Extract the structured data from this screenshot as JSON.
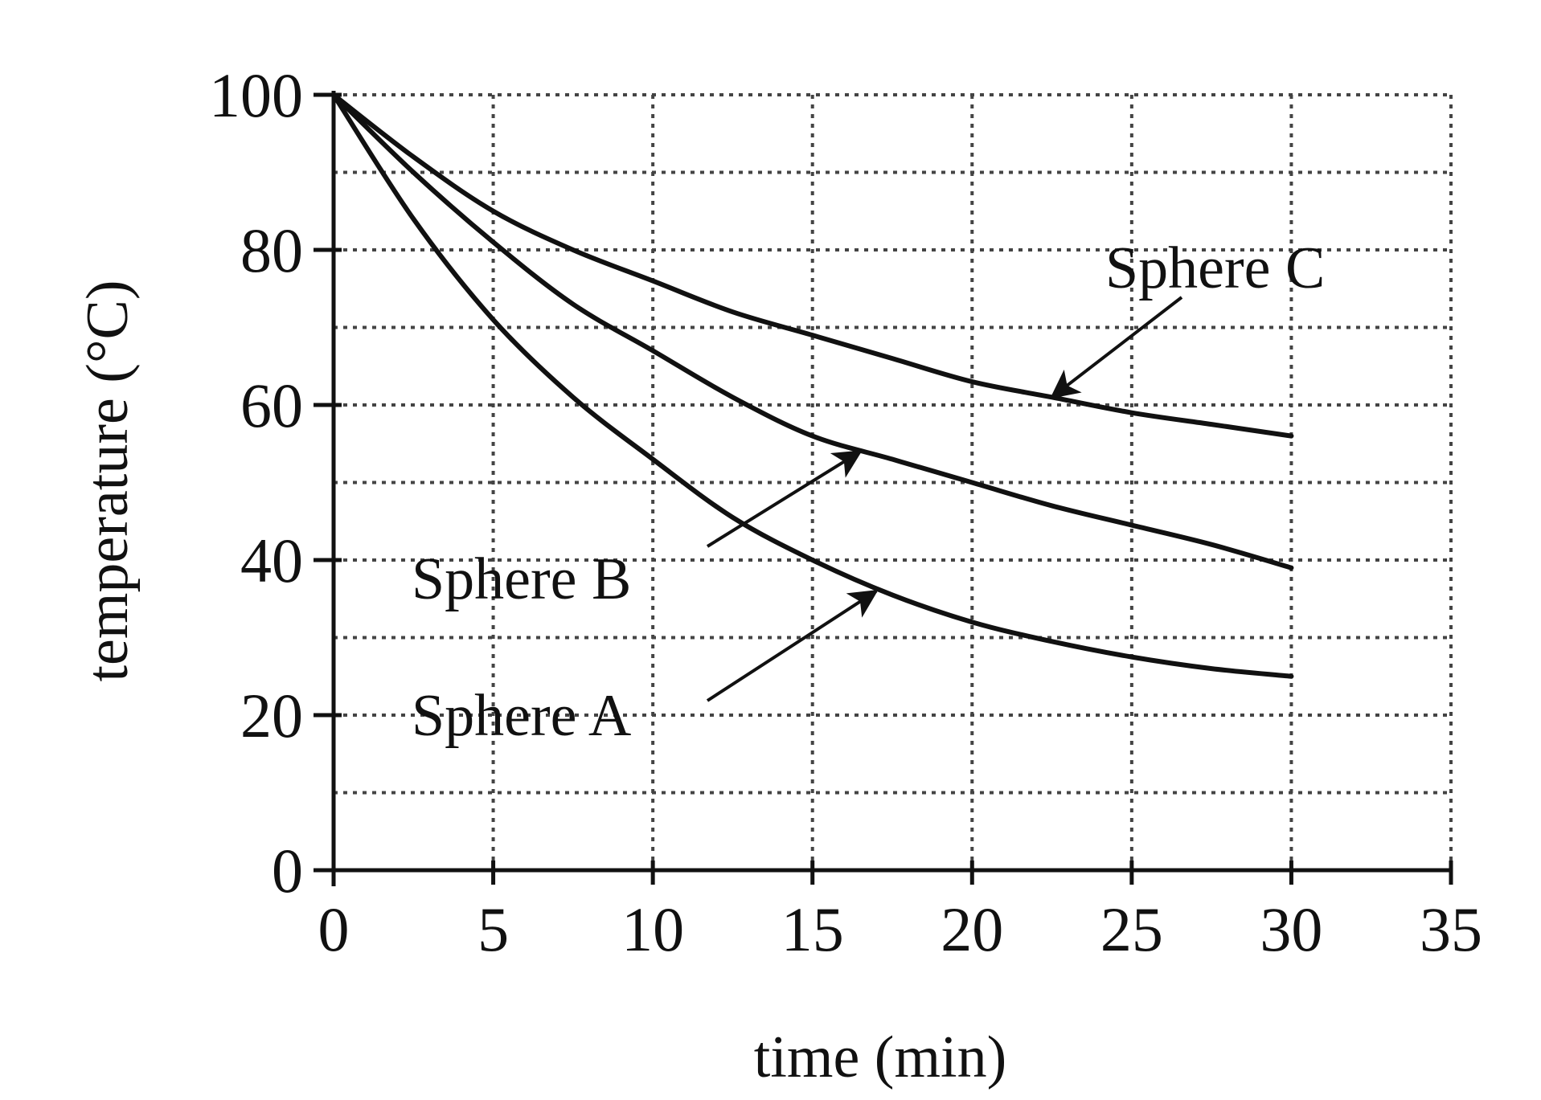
{
  "chart_data": {
    "type": "line",
    "title": "",
    "xlabel": "time (min)",
    "ylabel": "temperature (°C)",
    "xlim": [
      0,
      35
    ],
    "ylim": [
      0,
      100
    ],
    "x_ticks": [
      0,
      5,
      10,
      15,
      20,
      25,
      30,
      35
    ],
    "y_ticks": [
      0,
      20,
      40,
      60,
      80,
      100
    ],
    "x_tick_labels": [
      "0",
      "5",
      "10",
      "15",
      "20",
      "25",
      "30",
      "35"
    ],
    "y_tick_labels": [
      "0",
      "20",
      "40",
      "60",
      "80",
      "100"
    ],
    "grid": true,
    "legend": "none",
    "series": [
      {
        "name": "Sphere A",
        "x": [
          0,
          2.5,
          5,
          7.5,
          10,
          12.5,
          15,
          17.5,
          20,
          22.5,
          25,
          27.5,
          30
        ],
        "y": [
          100,
          84,
          71,
          61,
          53,
          45.5,
          40,
          35.5,
          32,
          29.5,
          27.5,
          26,
          25
        ]
      },
      {
        "name": "Sphere B",
        "x": [
          0,
          2.5,
          5,
          7.5,
          10,
          12.5,
          15,
          17.5,
          20,
          22.5,
          25,
          27.5,
          30
        ],
        "y": [
          100,
          90,
          81,
          73,
          67,
          61,
          56,
          53,
          50,
          47,
          44.5,
          42,
          39
        ]
      },
      {
        "name": "Sphere C",
        "x": [
          0,
          2.5,
          5,
          7.5,
          10,
          12.5,
          15,
          17.5,
          20,
          22.5,
          25,
          27.5,
          30
        ],
        "y": [
          100,
          92,
          85,
          80,
          76,
          72,
          69,
          66,
          63,
          61,
          59,
          57.5,
          56
        ]
      }
    ],
    "annotations": [
      {
        "text": "Sphere C",
        "target_series": "Sphere C",
        "target": [
          22.5,
          61
        ]
      },
      {
        "text": "Sphere B",
        "target_series": "Sphere B",
        "target": [
          16.5,
          54
        ]
      },
      {
        "text": "Sphere A",
        "target_series": "Sphere A",
        "target": [
          17,
          36
        ]
      }
    ],
    "colors": {
      "ink": "#111111",
      "grid": "#444444",
      "background": "#ffffff"
    }
  }
}
